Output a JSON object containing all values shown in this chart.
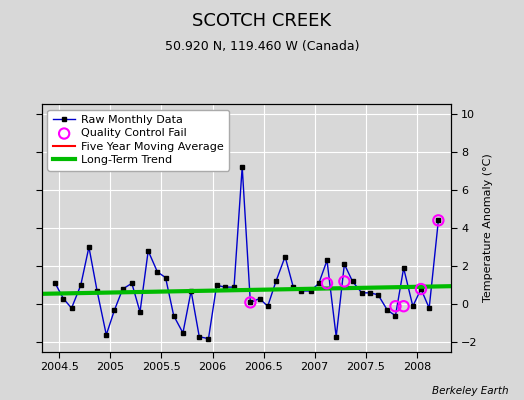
{
  "title": "SCOTCH CREEK",
  "subtitle": "50.920 N, 119.460 W (Canada)",
  "ylabel": "Temperature Anomaly (°C)",
  "credit": "Berkeley Earth",
  "xlim": [
    2004.33,
    2008.33
  ],
  "ylim": [
    -2.5,
    10.5
  ],
  "yticks": [
    -2,
    0,
    2,
    4,
    6,
    8,
    10
  ],
  "xticks": [
    2004.5,
    2005.0,
    2005.5,
    2006.0,
    2006.5,
    2007.0,
    2007.5,
    2008.0
  ],
  "xticklabels": [
    "2004.5",
    "2005",
    "2005.5",
    "2006",
    "2006.5",
    "2007",
    "2007.5",
    "2008"
  ],
  "raw_x": [
    2004.46,
    2004.54,
    2004.62,
    2004.71,
    2004.79,
    2004.87,
    2004.96,
    2005.04,
    2005.12,
    2005.21,
    2005.29,
    2005.37,
    2005.46,
    2005.54,
    2005.62,
    2005.71,
    2005.79,
    2005.87,
    2005.96,
    2006.04,
    2006.12,
    2006.21,
    2006.29,
    2006.37,
    2006.46,
    2006.54,
    2006.62,
    2006.71,
    2006.79,
    2006.87,
    2006.96,
    2007.04,
    2007.12,
    2007.21,
    2007.29,
    2007.37,
    2007.46,
    2007.54,
    2007.62,
    2007.71,
    2007.79,
    2007.87,
    2007.96,
    2008.04,
    2008.12,
    2008.21
  ],
  "raw_y": [
    1.1,
    0.3,
    -0.2,
    1.0,
    3.0,
    0.7,
    -1.6,
    -0.3,
    0.8,
    1.1,
    -0.4,
    2.8,
    1.7,
    1.4,
    -0.6,
    -1.5,
    0.7,
    -1.7,
    -1.8,
    1.0,
    0.9,
    0.9,
    7.2,
    0.1,
    0.3,
    -0.1,
    1.2,
    2.5,
    0.9,
    0.7,
    0.7,
    1.1,
    2.3,
    -1.7,
    2.1,
    1.2,
    0.6,
    0.6,
    0.5,
    -0.3,
    -0.6,
    1.9,
    -0.1,
    0.8,
    -0.2,
    4.4
  ],
  "qc_fail_x": [
    2006.37,
    2007.12,
    2007.29,
    2007.79,
    2007.87,
    2008.04,
    2008.21
  ],
  "qc_fail_y": [
    0.1,
    1.1,
    1.2,
    -0.1,
    -0.1,
    0.8,
    4.4
  ],
  "trend_x": [
    2004.33,
    2008.33
  ],
  "trend_y": [
    0.55,
    0.95
  ],
  "bg_color": "#d8d8d8",
  "plot_bg_color": "#d8d8d8",
  "raw_color": "#0000cc",
  "raw_marker_color": "#000000",
  "qc_color": "#ff00ff",
  "ma_color": "#ff0000",
  "trend_color": "#00bb00",
  "grid_color": "#ffffff",
  "title_fontsize": 13,
  "subtitle_fontsize": 9,
  "label_fontsize": 8,
  "tick_fontsize": 8,
  "legend_fontsize": 8
}
